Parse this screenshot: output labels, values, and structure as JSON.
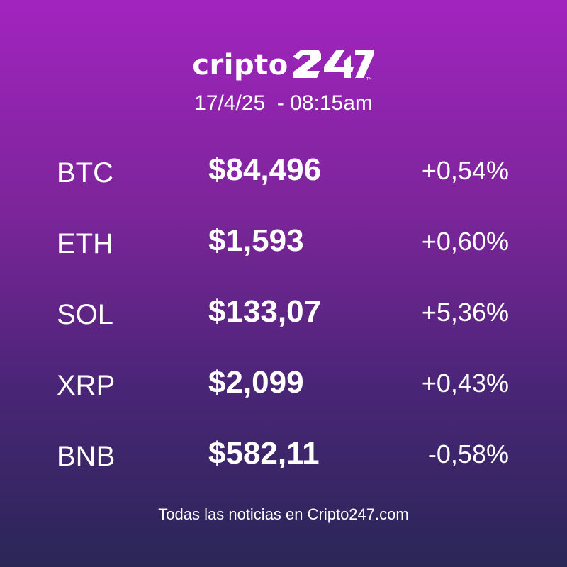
{
  "brand": {
    "wordmark": "cripto",
    "number_mark": "247",
    "trademark": "TM"
  },
  "datetime": "17/4/25  - 08:15am",
  "quotes": [
    {
      "symbol": "BTC",
      "price": "$84,496",
      "change": "+0,54%"
    },
    {
      "symbol": "ETH",
      "price": "$1,593",
      "change": "+0,60%"
    },
    {
      "symbol": "SOL",
      "price": "$133,07",
      "change": "+5,36%"
    },
    {
      "symbol": "XRP",
      "price": "$2,099",
      "change": "+0,43%"
    },
    {
      "symbol": "BNB",
      "price": "$582,11",
      "change": "-0,58%"
    }
  ],
  "footer": "Todas las noticias en Cripto247.com",
  "colors": {
    "gradient_top": "#a224bf",
    "gradient_mid": "#7b2599",
    "gradient_low": "#4a2577",
    "gradient_bottom": "#2a2757",
    "text": "#ffffff"
  }
}
